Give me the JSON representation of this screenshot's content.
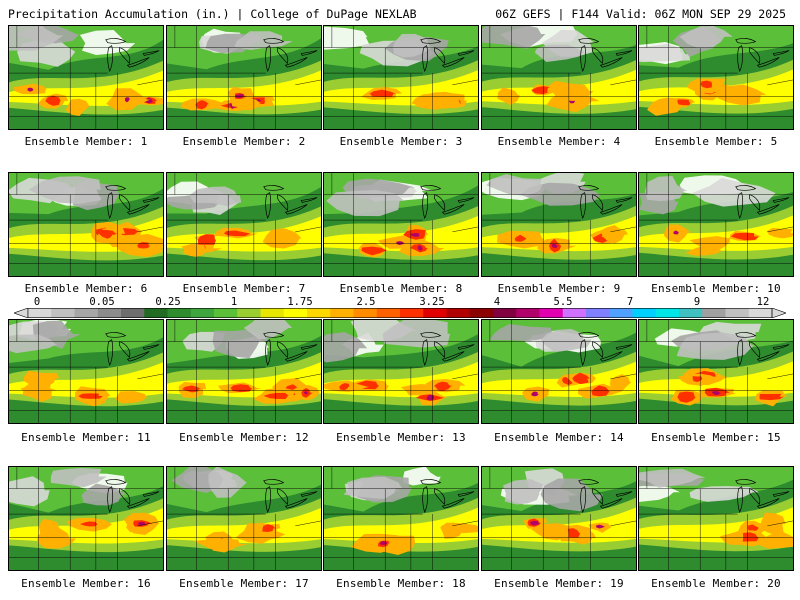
{
  "header": {
    "title": "Precipitation Accumulation (in.) | College of DuPage NEXLAB",
    "run_info": "06Z GEFS | F144 Valid: 06Z MON SEP 29 2025"
  },
  "colorbar": {
    "tick_labels": [
      "0",
      "0.05",
      "0.25",
      "1",
      "1.75",
      "2.5",
      "3.25",
      "4",
      "5.5",
      "7",
      "9",
      "12"
    ],
    "colors": [
      "#d9d9d9",
      "#c0c0c0",
      "#a6a6a6",
      "#8c8c8c",
      "#6e6e6e",
      "#226b22",
      "#2e8b2e",
      "#3fa53f",
      "#5cbf3a",
      "#9acd32",
      "#e6e600",
      "#ffff00",
      "#ffd700",
      "#ffb000",
      "#ff8c00",
      "#ff6000",
      "#ff3000",
      "#e00000",
      "#b00000",
      "#8b0000",
      "#800040",
      "#b0006a",
      "#e000b0",
      "#d070ff",
      "#8080ff",
      "#4fa0ff",
      "#00d0ff",
      "#00e5e5",
      "#40c0c0",
      "#a0a0a0",
      "#c0c0c0",
      "#d9d9d9"
    ]
  },
  "members": [
    {
      "label": "Ensemble Member: 1",
      "heavy": 0.3
    },
    {
      "label": "Ensemble Member: 2",
      "heavy": 0.85
    },
    {
      "label": "Ensemble Member: 3",
      "heavy": 0.45
    },
    {
      "label": "Ensemble Member: 4",
      "heavy": 0.25
    },
    {
      "label": "Ensemble Member: 5",
      "heavy": 0.4
    },
    {
      "label": "Ensemble Member: 6",
      "heavy": 0.6
    },
    {
      "label": "Ensemble Member: 7",
      "heavy": 0.25
    },
    {
      "label": "Ensemble Member: 8",
      "heavy": 0.5
    },
    {
      "label": "Ensemble Member: 9",
      "heavy": 0.55
    },
    {
      "label": "Ensemble Member: 10",
      "heavy": 0.4
    },
    {
      "label": "Ensemble Member: 11",
      "heavy": 0.55
    },
    {
      "label": "Ensemble Member: 12",
      "heavy": 0.7
    },
    {
      "label": "Ensemble Member: 13",
      "heavy": 0.5
    },
    {
      "label": "Ensemble Member: 14",
      "heavy": 0.7
    },
    {
      "label": "Ensemble Member: 15",
      "heavy": 0.65
    },
    {
      "label": "Ensemble Member: 16",
      "heavy": 0.45
    },
    {
      "label": "Ensemble Member: 17",
      "heavy": 0.2
    },
    {
      "label": "Ensemble Member: 18",
      "heavy": 0.65
    },
    {
      "label": "Ensemble Member: 19",
      "heavy": 0.45
    },
    {
      "label": "Ensemble Member: 20",
      "heavy": 0.35
    }
  ]
}
